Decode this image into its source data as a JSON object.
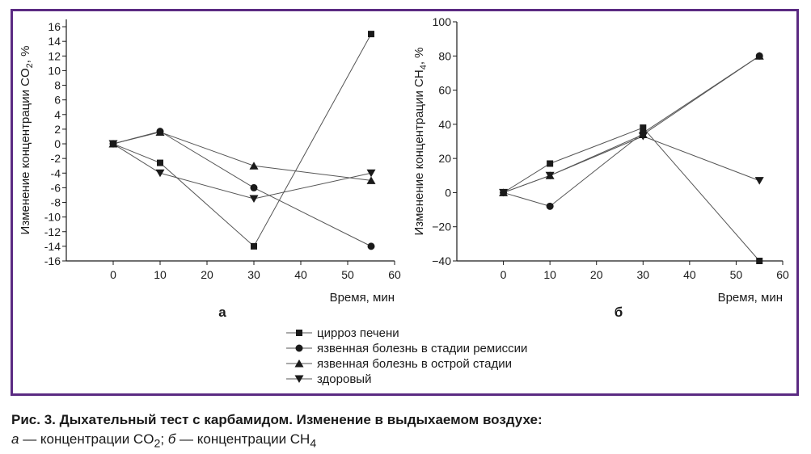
{
  "colors": {
    "frame": "#5b2a82",
    "line": "#555555",
    "marker": "#1a1a1a"
  },
  "legend": [
    {
      "marker": "square",
      "label": "цирроз печени"
    },
    {
      "marker": "circle",
      "label": "язвенная болезнь в стадии ремиссии"
    },
    {
      "marker": "triangle-up",
      "label": "язвенная болезнь в острой стадии"
    },
    {
      "marker": "triangle-down",
      "label": "здоровый"
    }
  ],
  "caption": {
    "line1": "Рис. 3. Дыхательный тест с карбамидом. Изменение в выдыхаемом воздухе:",
    "a_letter": "а",
    "a_text": " — концентрации CO",
    "a_sub": "2",
    "sep": "; ",
    "b_letter": "б",
    "b_text": " — концентрации CH",
    "b_sub": "4"
  },
  "chart_data": [
    {
      "type": "line",
      "panel_label": "а",
      "xlabel": "Время, мин",
      "ylabel": "Изменение концентрации CO",
      "ylabel_sub": "2",
      "ylabel_suffix": ", %",
      "xlim": [
        -10,
        60
      ],
      "ylim": [
        -16,
        17
      ],
      "xticks": [
        0,
        10,
        20,
        30,
        40,
        50,
        60
      ],
      "yticks": [
        16,
        14,
        12,
        10,
        8,
        6,
        4,
        2,
        0,
        -2,
        -4,
        -6,
        -8,
        -10,
        -12,
        -14,
        -16
      ],
      "x": [
        0,
        10,
        30,
        55
      ],
      "series": [
        {
          "marker": "square",
          "values": [
            0,
            -2.6,
            -14,
            15
          ]
        },
        {
          "marker": "circle",
          "values": [
            0,
            1.7,
            -6,
            -14
          ]
        },
        {
          "marker": "triangle-up",
          "values": [
            0,
            1.6,
            -3,
            -5
          ]
        },
        {
          "marker": "triangle-down",
          "values": [
            0,
            -4,
            -7.5,
            -4
          ]
        }
      ]
    },
    {
      "type": "line",
      "panel_label": "б",
      "xlabel": "Время, мин",
      "ylabel": "Изменение концентрации CH",
      "ylabel_sub": "4",
      "ylabel_suffix": ", %",
      "xlim": [
        -10,
        60
      ],
      "ylim": [
        -40,
        100
      ],
      "xticks": [
        0,
        10,
        20,
        30,
        40,
        50,
        60
      ],
      "yticks": [
        100,
        80,
        60,
        40,
        20,
        0,
        -20,
        -40
      ],
      "ytick_labels": [
        "100",
        "80",
        "60",
        "40",
        "20",
        "0",
        "−20",
        "−40"
      ],
      "x": [
        0,
        10,
        30,
        55
      ],
      "series": [
        {
          "marker": "square",
          "values": [
            0,
            17,
            38,
            -40
          ]
        },
        {
          "marker": "circle",
          "values": [
            0,
            -8,
            35,
            80
          ]
        },
        {
          "marker": "triangle-up",
          "values": [
            0,
            10,
            34,
            80
          ]
        },
        {
          "marker": "triangle-down",
          "values": [
            0,
            10,
            33,
            7
          ]
        }
      ]
    }
  ]
}
